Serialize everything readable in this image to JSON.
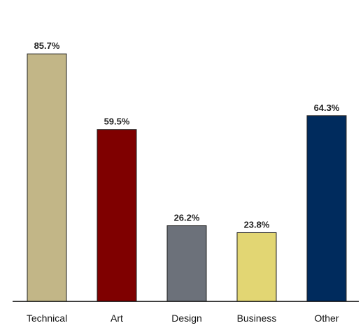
{
  "chart_data": {
    "type": "bar",
    "categories": [
      "Technical",
      "Art",
      "Design",
      "Business",
      "Other"
    ],
    "values": [
      85.7,
      59.5,
      26.2,
      23.8,
      64.3
    ],
    "value_labels": [
      "85.7%",
      "59.5%",
      "26.2%",
      "23.8%",
      "64.3%"
    ],
    "colors": [
      "#c2b687",
      "#7f0000",
      "#6c717a",
      "#e2d673",
      "#002b5d"
    ],
    "bar_outline_color": "#222222",
    "ylim": [
      0,
      100
    ],
    "grid": false,
    "title": "",
    "xlabel": "",
    "ylabel": ""
  }
}
